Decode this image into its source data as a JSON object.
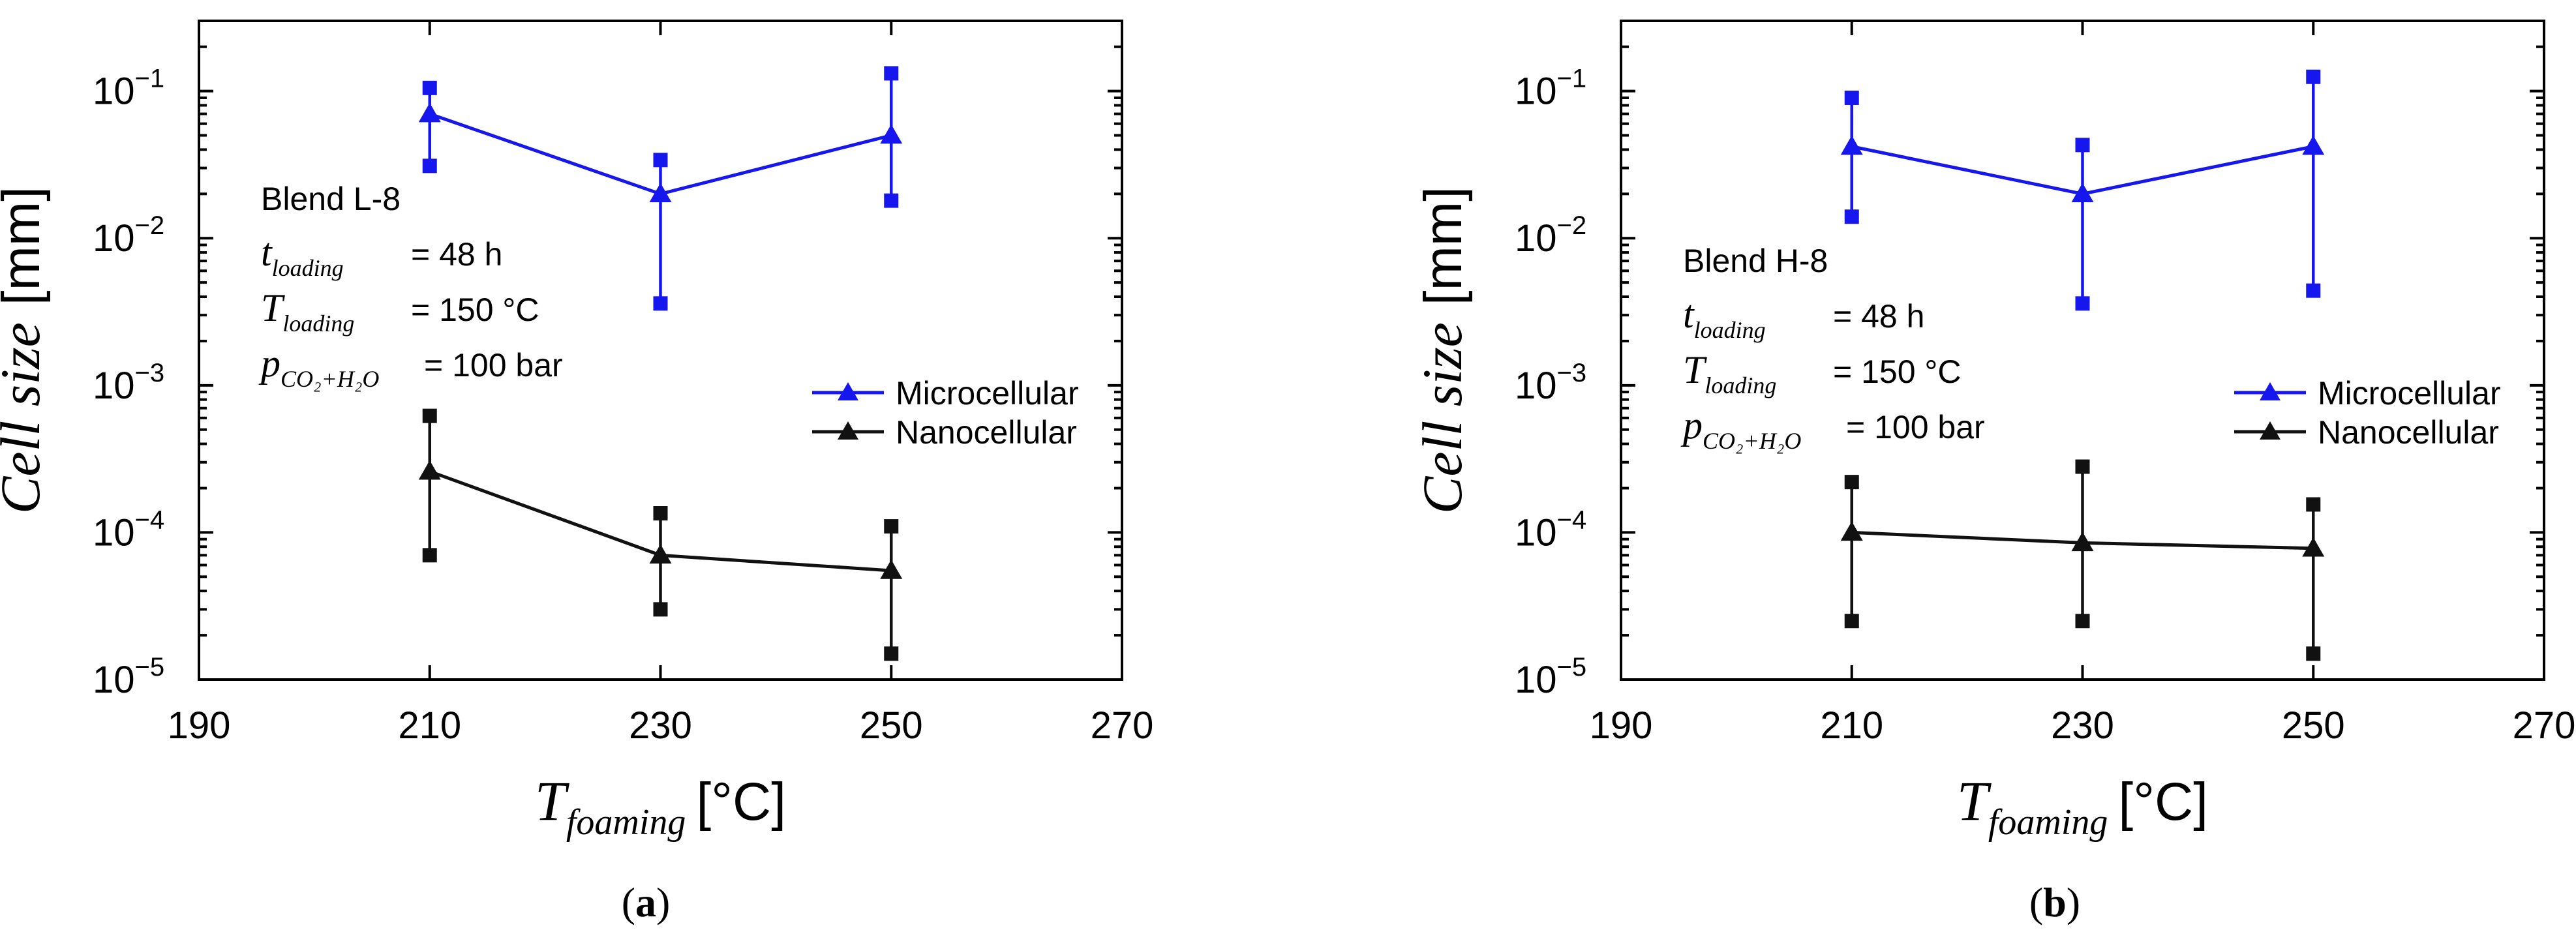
{
  "colors": {
    "micro": "#1616ee",
    "nano": "#111111",
    "axis": "#000000"
  },
  "icons": {
    "micro_marker": "triangle-marker",
    "nano_marker": "triangle-marker",
    "error_cap": "square-marker"
  },
  "panels": [
    {
      "caption_open": "(",
      "caption_letter": "a",
      "caption_close": ")",
      "blend": "Blend L-8",
      "t_loading": {
        "sym": "t",
        "sub": "loading",
        "value": "= 48 h"
      },
      "T_loading": {
        "sym": "T",
        "sub": "loading",
        "value": "= 150 °C"
      },
      "p": {
        "sym": "p",
        "sub": "CO₂+H₂O",
        "value": "= 100 bar"
      }
    },
    {
      "caption_open": "(",
      "caption_letter": "b",
      "caption_close": ")",
      "blend": "Blend H-8",
      "t_loading": {
        "sym": "t",
        "sub": "loading",
        "value": "= 48 h"
      },
      "T_loading": {
        "sym": "T",
        "sub": "loading",
        "value": "= 150 °C"
      },
      "p": {
        "sym": "p",
        "sub": "CO₂+H₂O",
        "value": "= 100 bar"
      }
    }
  ],
  "chart_data": [
    {
      "type": "line",
      "y_scale": "log",
      "title": "",
      "xlabel": {
        "sym": "T",
        "sub": "foaming",
        "unit": "[°C]"
      },
      "ylabel": {
        "text": "Cell size",
        "unit": "[mm]"
      },
      "xlim": [
        190,
        270
      ],
      "ylim": [
        1e-05,
        0.3
      ],
      "xticks": [
        190,
        210,
        230,
        250,
        270
      ],
      "xtick_labels": [
        "190",
        "210",
        "230",
        "250",
        "270"
      ],
      "yticks": [
        1e-05,
        0.0001,
        0.001,
        0.01,
        0.1
      ],
      "ytick_labels": [
        {
          "base": "10",
          "exp": "−5"
        },
        {
          "base": "10",
          "exp": "−4"
        },
        {
          "base": "10",
          "exp": "−3"
        },
        {
          "base": "10",
          "exp": "−2"
        },
        {
          "base": "10",
          "exp": "−1"
        }
      ],
      "legend_position": "center-right",
      "series": [
        {
          "name": "Microcellular",
          "color_key": "micro",
          "x": [
            210,
            230,
            250
          ],
          "y": [
            0.07,
            0.02,
            0.05
          ],
          "err_low": [
            0.031,
            0.0036,
            0.018
          ],
          "err_high": [
            0.105,
            0.034,
            0.132
          ]
        },
        {
          "name": "Nanocellular",
          "color_key": "nano",
          "x": [
            210,
            230,
            250
          ],
          "y": [
            0.00026,
            7e-05,
            5.5e-05
          ],
          "err_low": [
            7e-05,
            3e-05,
            1.5e-05
          ],
          "err_high": [
            0.00062,
            0.000135,
            0.00011
          ]
        }
      ]
    },
    {
      "type": "line",
      "y_scale": "log",
      "title": "",
      "xlabel": {
        "sym": "T",
        "sub": "foaming",
        "unit": "[°C]"
      },
      "ylabel": {
        "text": "Cell size",
        "unit": "[mm]"
      },
      "xlim": [
        190,
        270
      ],
      "ylim": [
        1e-05,
        0.3
      ],
      "xticks": [
        190,
        210,
        230,
        250,
        270
      ],
      "xtick_labels": [
        "190",
        "210",
        "230",
        "250",
        "270"
      ],
      "yticks": [
        1e-05,
        0.0001,
        0.001,
        0.01,
        0.1
      ],
      "ytick_labels": [
        {
          "base": "10",
          "exp": "−5"
        },
        {
          "base": "10",
          "exp": "−4"
        },
        {
          "base": "10",
          "exp": "−3"
        },
        {
          "base": "10",
          "exp": "−2"
        },
        {
          "base": "10",
          "exp": "−1"
        }
      ],
      "legend_position": "center-right",
      "series": [
        {
          "name": "Microcellular",
          "color_key": "micro",
          "x": [
            210,
            230,
            250
          ],
          "y": [
            0.042,
            0.02,
            0.042
          ],
          "err_low": [
            0.014,
            0.0036,
            0.0044
          ],
          "err_high": [
            0.09,
            0.043,
            0.125
          ]
        },
        {
          "name": "Nanocellular",
          "color_key": "nano",
          "x": [
            210,
            230,
            250
          ],
          "y": [
            0.0001,
            8.5e-05,
            7.8e-05
          ],
          "err_low": [
            2.5e-05,
            2.5e-05,
            1.5e-05
          ],
          "err_high": [
            0.00022,
            0.00028,
            0.000155
          ]
        }
      ]
    }
  ]
}
